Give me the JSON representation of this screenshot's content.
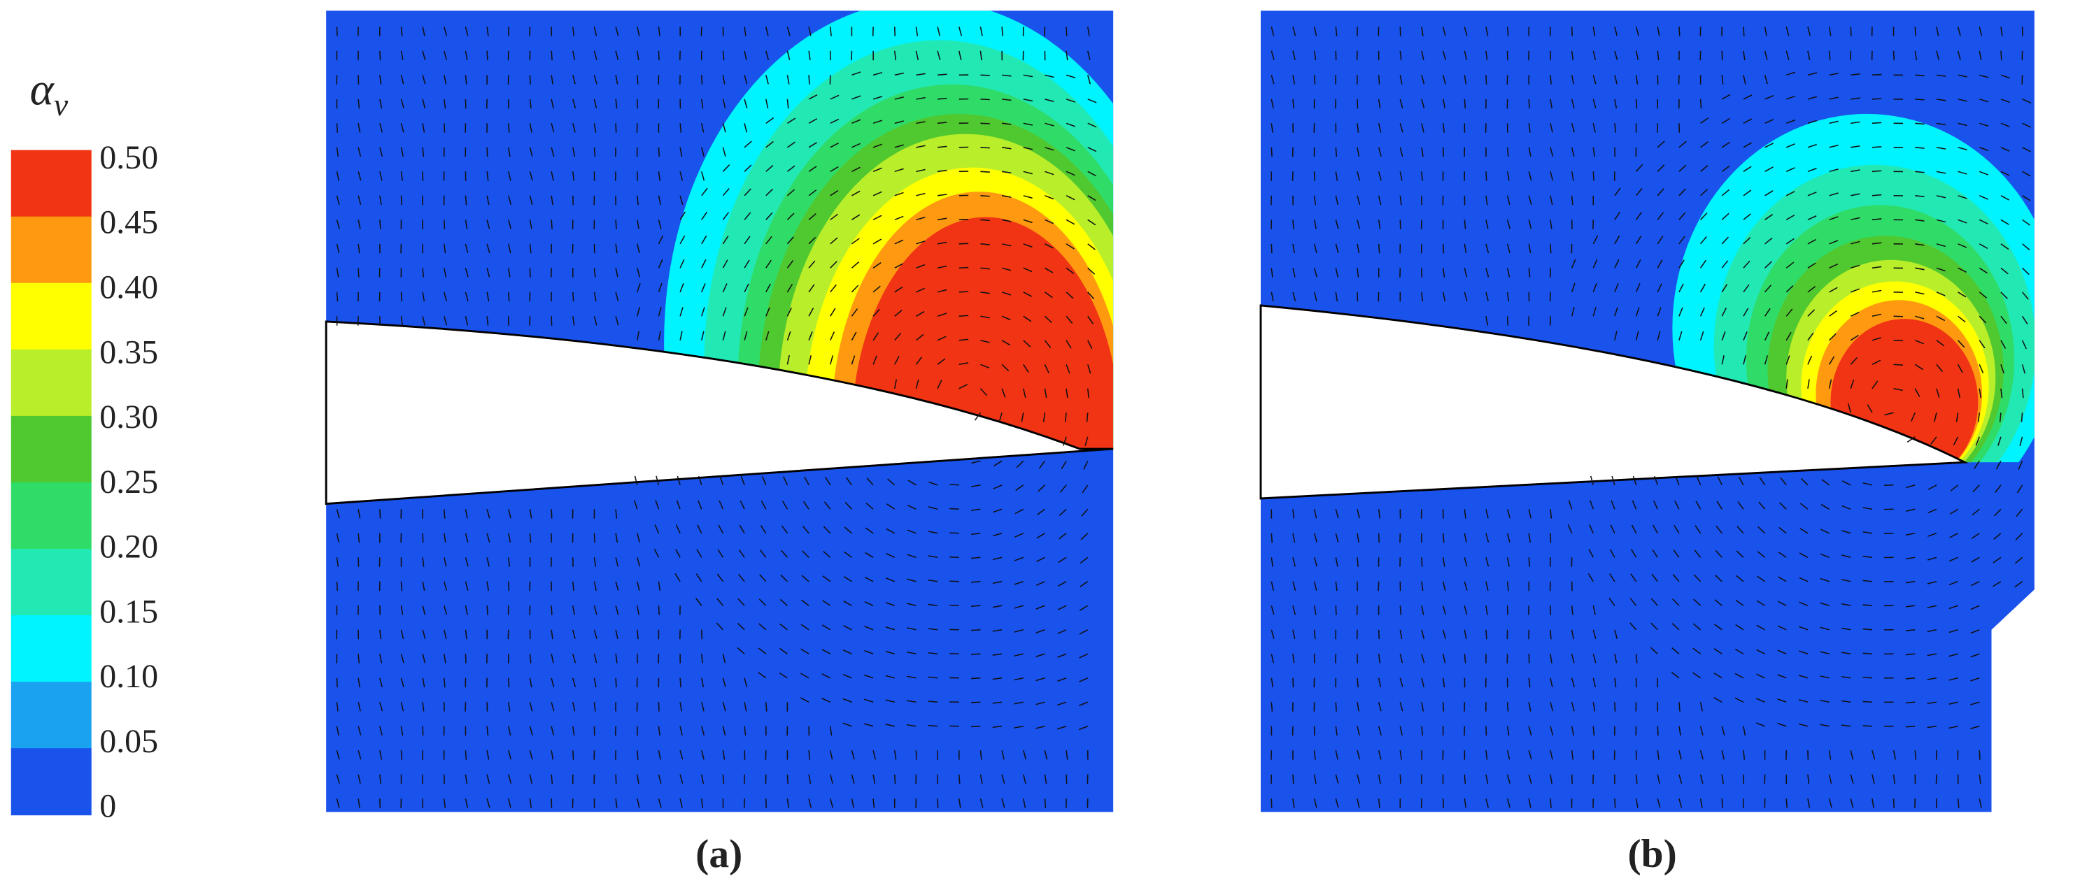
{
  "colorbar": {
    "title": "α",
    "subscript": "v",
    "ticks": [
      "0.50",
      "0.45",
      "0.40",
      "0.35",
      "0.30",
      "0.25",
      "0.20",
      "0.15",
      "0.10",
      "0.05",
      "0"
    ],
    "colors": [
      "#f03414",
      "#ff9a10",
      "#ffff00",
      "#b8ee2a",
      "#50c830",
      "#30dc68",
      "#22e8b4",
      "#00f4ff",
      "#1aa2f0",
      "#1a52ec"
    ]
  },
  "panels": [
    {
      "label": "(a)"
    },
    {
      "label": "(b)"
    }
  ]
}
